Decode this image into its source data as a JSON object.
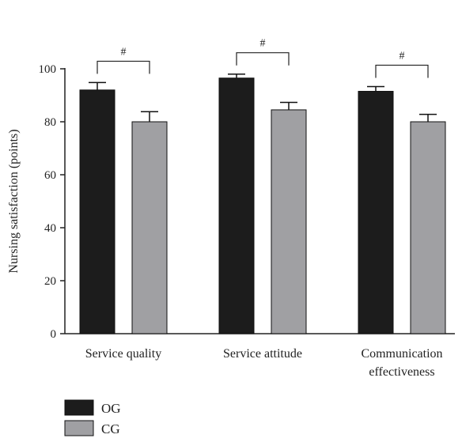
{
  "chart_data": {
    "type": "bar",
    "title": "",
    "xlabel": "",
    "ylabel": "Nursing satisfaction (points)",
    "ylim": [
      0,
      100
    ],
    "yticks": [
      0,
      20,
      40,
      60,
      80,
      100
    ],
    "categories": [
      "Service quality",
      "Service attitude",
      "Communication effectiveness"
    ],
    "category_lines": [
      [
        "Service quality"
      ],
      [
        "Service attitude"
      ],
      [
        "Communication",
        "effectiveness"
      ]
    ],
    "series": [
      {
        "name": "OG",
        "color": "#1c1c1c",
        "values": [
          92,
          96.5,
          91.5
        ],
        "errors": [
          2.8,
          1.5,
          1.8
        ]
      },
      {
        "name": "CG",
        "color": "#a0a0a3",
        "values": [
          80,
          84.5,
          80
        ],
        "errors": [
          3.8,
          2.8,
          2.8
        ]
      }
    ],
    "significance": [
      {
        "category": "Service quality",
        "label": "#"
      },
      {
        "category": "Service attitude",
        "label": "#"
      },
      {
        "category": "Communication effectiveness",
        "label": "#"
      }
    ],
    "legend": {
      "position": "bottom-left"
    },
    "grid": false
  }
}
